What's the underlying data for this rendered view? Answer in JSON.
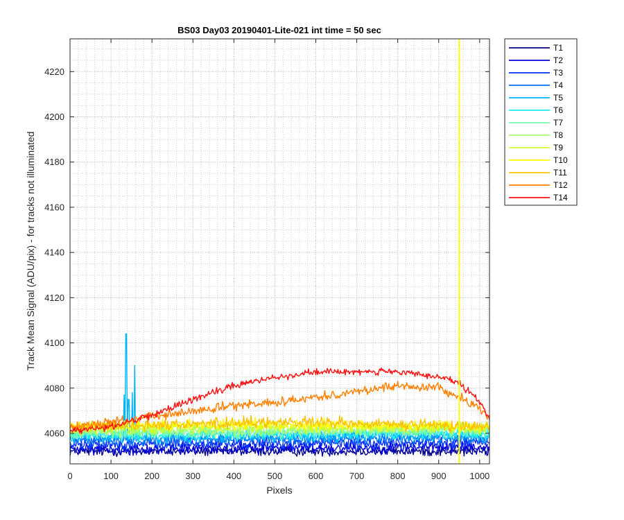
{
  "chart_data": {
    "type": "line",
    "title": "BS03 Day03 20190401-Lite-021 int time = 50 sec",
    "xlabel": "Pixels",
    "ylabel": "Track Mean Signal (ADU/pix) - for tracks not illuminated",
    "xlim": [
      0,
      1024
    ],
    "ylim": [
      4046.5,
      4234.5
    ],
    "xticks": [
      0,
      100,
      200,
      300,
      400,
      500,
      600,
      700,
      800,
      900,
      1000
    ],
    "yticks": [
      4060,
      4080,
      4100,
      4120,
      4140,
      4160,
      4180,
      4200,
      4220
    ],
    "grid": true,
    "minor_grid": true,
    "legend_position": "outside-top-right",
    "vertical_line": {
      "x": 950,
      "color": "#ffff00"
    },
    "series": [
      {
        "name": "T1",
        "color": "#00008f",
        "profile": [
          [
            0,
            4052
          ],
          [
            1024,
            4052
          ]
        ],
        "noise": 2.0
      },
      {
        "name": "T2",
        "color": "#0000d8",
        "profile": [
          [
            0,
            4053
          ],
          [
            1024,
            4054
          ]
        ],
        "noise": 2.5
      },
      {
        "name": "T3",
        "color": "#0030ff",
        "profile": [
          [
            0,
            4055
          ],
          [
            1024,
            4056
          ]
        ],
        "noise": 2.5
      },
      {
        "name": "T4",
        "color": "#0070ff",
        "profile": [
          [
            0,
            4057
          ],
          [
            1024,
            4058
          ]
        ],
        "noise": 2.5
      },
      {
        "name": "T5",
        "color": "#00b4ff",
        "profile": [
          [
            0,
            4058
          ],
          [
            1024,
            4059
          ]
        ],
        "noise": 2.5,
        "spikes": [
          [
            132,
            4077
          ],
          [
            137,
            4104
          ],
          [
            143,
            4075
          ],
          [
            152,
            4078
          ],
          [
            158,
            4090
          ]
        ]
      },
      {
        "name": "T6",
        "color": "#20ecf0",
        "profile": [
          [
            0,
            4059
          ],
          [
            1024,
            4060
          ]
        ],
        "noise": 2.5
      },
      {
        "name": "T7",
        "color": "#70ffb0",
        "profile": [
          [
            0,
            4060
          ],
          [
            1024,
            4061
          ]
        ],
        "noise": 2.5
      },
      {
        "name": "T8",
        "color": "#a0ff70",
        "profile": [
          [
            0,
            4061
          ],
          [
            1024,
            4062
          ]
        ],
        "noise": 2.5
      },
      {
        "name": "T9",
        "color": "#d0ff30",
        "profile": [
          [
            0,
            4062
          ],
          [
            500,
            4063
          ],
          [
            1024,
            4062
          ]
        ],
        "noise": 2.5
      },
      {
        "name": "T10",
        "color": "#ffff00",
        "profile": [
          [
            0,
            4063
          ],
          [
            500,
            4064
          ],
          [
            1024,
            4063
          ]
        ],
        "noise": 2.5
      },
      {
        "name": "T11",
        "color": "#ffc000",
        "profile": [
          [
            0,
            4063
          ],
          [
            500,
            4065
          ],
          [
            1024,
            4063
          ]
        ],
        "noise": 2.5
      },
      {
        "name": "T12",
        "color": "#ff8000",
        "profile": [
          [
            0,
            4063
          ],
          [
            150,
            4066
          ],
          [
            350,
            4071
          ],
          [
            600,
            4076
          ],
          [
            800,
            4081
          ],
          [
            900,
            4080
          ],
          [
            950,
            4076
          ],
          [
            1000,
            4071
          ],
          [
            1024,
            4066
          ]
        ],
        "noise": 2.0
      },
      {
        "name": "T14",
        "color": "#ff1010",
        "profile": [
          [
            0,
            4061
          ],
          [
            100,
            4063
          ],
          [
            200,
            4068
          ],
          [
            300,
            4075
          ],
          [
            400,
            4081
          ],
          [
            500,
            4085
          ],
          [
            600,
            4087
          ],
          [
            700,
            4087.5
          ],
          [
            800,
            4087
          ],
          [
            900,
            4085
          ],
          [
            950,
            4082
          ],
          [
            1000,
            4074
          ],
          [
            1024,
            4066
          ]
        ],
        "noise": 1.5
      }
    ]
  }
}
